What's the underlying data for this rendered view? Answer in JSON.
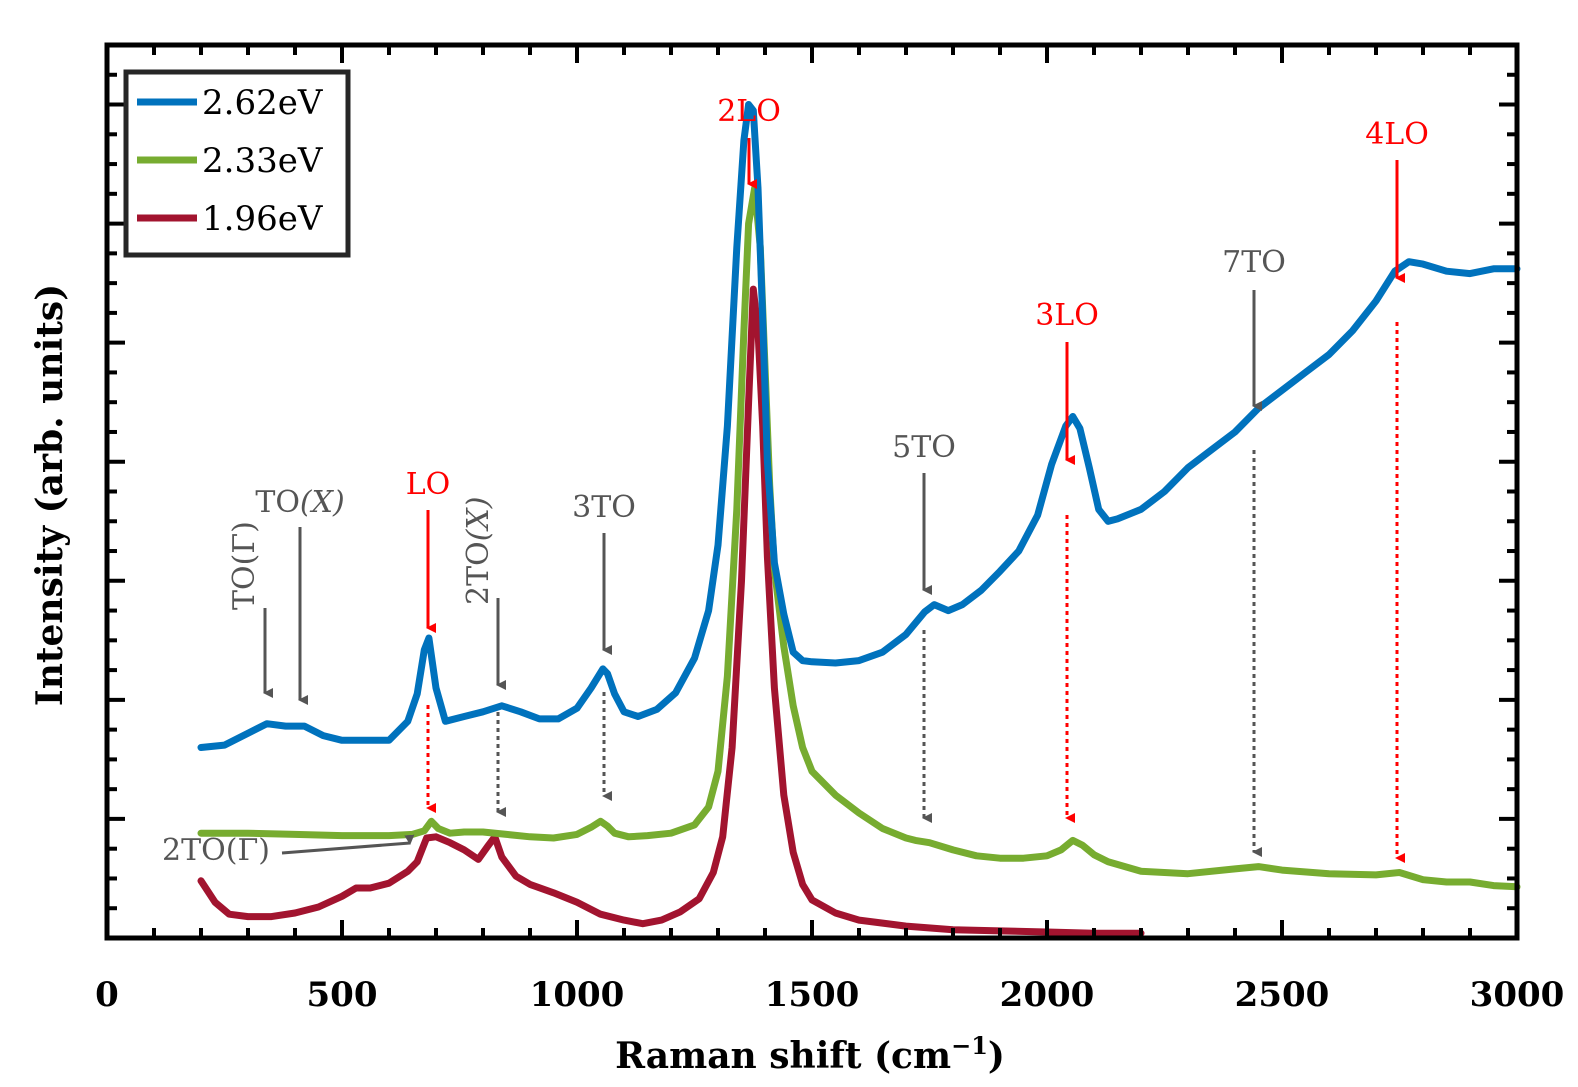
{
  "chart_data": {
    "type": "line",
    "xlabel": "Raman shift (cm",
    "xlabel_sup": "−1",
    "xlabel_close": ")",
    "ylabel": "Intensity (arb. units)",
    "xlim": [
      0,
      3000
    ],
    "ylim": [
      0,
      7.5
    ],
    "xticks": [
      "0",
      "500",
      "1000",
      "1500",
      "2000",
      "2500",
      "3000"
    ],
    "xtick_values": [
      0,
      500,
      1000,
      1500,
      2000,
      2500,
      3000
    ],
    "ytick_labels_shown": false,
    "grid": false,
    "legend_position": "top-left",
    "series": [
      {
        "name": "2.62eV",
        "color": "#0072BD",
        "x": [
          200,
          250,
          300,
          340,
          380,
          420,
          460,
          500,
          550,
          600,
          640,
          660,
          675,
          685,
          700,
          720,
          760,
          800,
          840,
          880,
          920,
          960,
          1000,
          1030,
          1055,
          1065,
          1080,
          1100,
          1130,
          1170,
          1210,
          1250,
          1280,
          1300,
          1320,
          1340,
          1355,
          1365,
          1375,
          1385,
          1395,
          1405,
          1420,
          1440,
          1460,
          1480,
          1500,
          1550,
          1600,
          1650,
          1700,
          1740,
          1760,
          1790,
          1820,
          1860,
          1900,
          1940,
          1980,
          2010,
          2040,
          2055,
          2070,
          2090,
          2110,
          2130,
          2150,
          2200,
          2250,
          2300,
          2350,
          2400,
          2450,
          2500,
          2550,
          2600,
          2650,
          2700,
          2740,
          2770,
          2800,
          2850,
          2900,
          2950,
          3000
        ],
        "y": [
          1.6,
          1.62,
          1.72,
          1.8,
          1.78,
          1.78,
          1.7,
          1.66,
          1.66,
          1.66,
          1.82,
          2.05,
          2.42,
          2.52,
          2.1,
          1.82,
          1.86,
          1.9,
          1.95,
          1.9,
          1.84,
          1.84,
          1.93,
          2.1,
          2.26,
          2.22,
          2.05,
          1.9,
          1.86,
          1.92,
          2.06,
          2.35,
          2.75,
          3.3,
          4.3,
          5.8,
          6.7,
          7.0,
          6.95,
          6.3,
          5.2,
          4.0,
          3.15,
          2.72,
          2.4,
          2.33,
          2.32,
          2.31,
          2.33,
          2.4,
          2.55,
          2.74,
          2.8,
          2.75,
          2.8,
          2.92,
          3.08,
          3.25,
          3.55,
          3.98,
          4.3,
          4.38,
          4.28,
          3.95,
          3.6,
          3.5,
          3.52,
          3.6,
          3.75,
          3.95,
          4.1,
          4.25,
          4.45,
          4.6,
          4.75,
          4.9,
          5.1,
          5.35,
          5.6,
          5.68,
          5.66,
          5.6,
          5.58,
          5.62,
          5.62
        ]
      },
      {
        "name": "2.33eV",
        "color": "#77AC30",
        "x": [
          200,
          300,
          400,
          500,
          600,
          650,
          675,
          690,
          705,
          730,
          760,
          800,
          850,
          900,
          950,
          1000,
          1030,
          1050,
          1065,
          1080,
          1110,
          1150,
          1200,
          1250,
          1280,
          1300,
          1320,
          1340,
          1355,
          1365,
          1378,
          1390,
          1400,
          1410,
          1420,
          1440,
          1460,
          1480,
          1500,
          1550,
          1600,
          1650,
          1700,
          1720,
          1750,
          1800,
          1850,
          1900,
          1950,
          2000,
          2030,
          2055,
          2075,
          2100,
          2130,
          2200,
          2300,
          2400,
          2450,
          2500,
          2600,
          2700,
          2750,
          2800,
          2850,
          2900,
          2950,
          3000
        ],
        "y": [
          0.88,
          0.88,
          0.87,
          0.86,
          0.86,
          0.87,
          0.9,
          0.98,
          0.92,
          0.88,
          0.89,
          0.89,
          0.87,
          0.85,
          0.84,
          0.87,
          0.93,
          0.98,
          0.94,
          0.88,
          0.85,
          0.86,
          0.88,
          0.95,
          1.1,
          1.4,
          2.2,
          3.6,
          5.1,
          6.0,
          6.3,
          5.8,
          4.8,
          3.8,
          3.1,
          2.45,
          1.95,
          1.6,
          1.4,
          1.2,
          1.05,
          0.92,
          0.84,
          0.82,
          0.8,
          0.74,
          0.69,
          0.67,
          0.67,
          0.69,
          0.74,
          0.82,
          0.78,
          0.7,
          0.64,
          0.56,
          0.54,
          0.58,
          0.6,
          0.57,
          0.54,
          0.53,
          0.55,
          0.49,
          0.47,
          0.47,
          0.44,
          0.43
        ]
      },
      {
        "name": "1.96eV",
        "color": "#A2142F",
        "x": [
          200,
          230,
          260,
          300,
          350,
          400,
          450,
          500,
          530,
          560,
          600,
          640,
          660,
          680,
          700,
          730,
          760,
          790,
          810,
          825,
          840,
          870,
          900,
          950,
          1000,
          1050,
          1100,
          1140,
          1180,
          1220,
          1260,
          1290,
          1310,
          1330,
          1350,
          1365,
          1375,
          1385,
          1395,
          1405,
          1420,
          1440,
          1460,
          1480,
          1500,
          1550,
          1600,
          1700,
          1800,
          1900,
          2000,
          2100,
          2200
        ],
        "y": [
          0.48,
          0.3,
          0.2,
          0.18,
          0.18,
          0.21,
          0.26,
          0.35,
          0.42,
          0.42,
          0.46,
          0.56,
          0.64,
          0.84,
          0.85,
          0.8,
          0.74,
          0.66,
          0.77,
          0.85,
          0.68,
          0.52,
          0.45,
          0.38,
          0.3,
          0.2,
          0.15,
          0.12,
          0.15,
          0.22,
          0.33,
          0.55,
          0.85,
          1.6,
          3.0,
          4.5,
          5.45,
          5.1,
          4.3,
          3.2,
          2.1,
          1.2,
          0.72,
          0.45,
          0.32,
          0.21,
          0.15,
          0.1,
          0.07,
          0.06,
          0.05,
          0.04,
          0.04
        ]
      }
    ],
    "annotations": [
      {
        "label": "TO",
        "label_sym": "(Γ)",
        "color": "#555555",
        "rotated": true
      },
      {
        "label": "TO",
        "label_sym": "(X)",
        "color": "#555555",
        "rotated": false
      },
      {
        "label": "LO",
        "label_sym": "",
        "color": "#ff0000",
        "rotated": false
      },
      {
        "label": "2TO",
        "label_sym": "(X)",
        "color": "#555555",
        "rotated": true
      },
      {
        "label": "3TO",
        "label_sym": "",
        "color": "#555555",
        "rotated": false
      },
      {
        "label": "2LO",
        "label_sym": "",
        "color": "#ff0000",
        "rotated": false
      },
      {
        "label": "5TO",
        "label_sym": "",
        "color": "#555555",
        "rotated": false
      },
      {
        "label": "3LO",
        "label_sym": "",
        "color": "#ff0000",
        "rotated": false
      },
      {
        "label": "7TO",
        "label_sym": "",
        "color": "#555555",
        "rotated": false
      },
      {
        "label": "4LO",
        "label_sym": "",
        "color": "#ff0000",
        "rotated": false
      },
      {
        "label": "2TO",
        "label_sym": "(Γ)",
        "color": "#555555",
        "rotated": false
      }
    ]
  }
}
